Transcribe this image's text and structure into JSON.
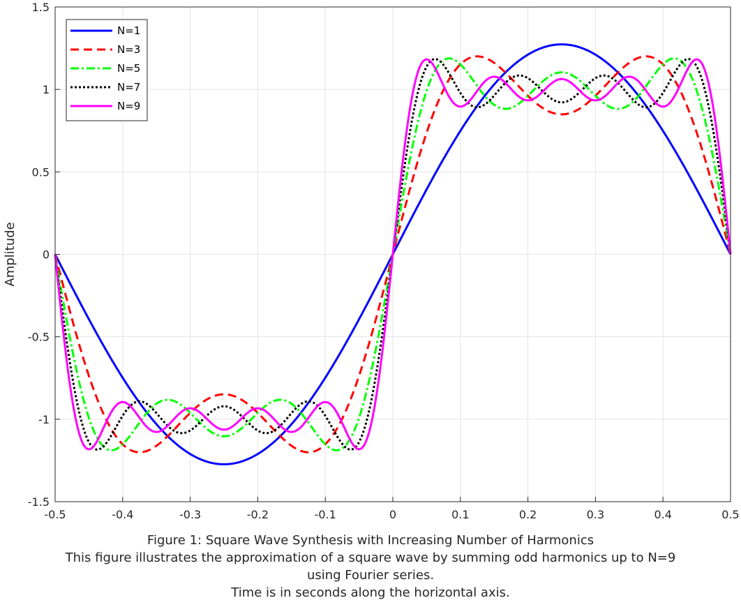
{
  "chart_data": {
    "type": "line",
    "title": "",
    "xlabel": "",
    "ylabel": "Amplitude",
    "xlim": [
      -0.5,
      0.5
    ],
    "ylim": [
      -1.5,
      1.5
    ],
    "x_ticks": [
      "-0.5",
      "-0.4",
      "-0.3",
      "-0.2",
      "-0.1",
      "0",
      "0.1",
      "0.2",
      "0.3",
      "0.4",
      "0.5"
    ],
    "y_ticks": [
      "1.5",
      "1",
      "0.5",
      "0",
      "-0.5",
      "-1",
      "-1.5"
    ],
    "grid": true,
    "legend_position": "top-left",
    "function": "sum over odd k <= N of (4/pi) * sin(2*pi*k*t)/k, t in seconds",
    "series": [
      {
        "name": "N=1",
        "harmonics": 1,
        "color": "#0000ff",
        "style": "solid"
      },
      {
        "name": "N=3",
        "harmonics": 3,
        "color": "#ff0000",
        "style": "dashed"
      },
      {
        "name": "N=5",
        "harmonics": 5,
        "color": "#00ff00",
        "style": "dash-dot"
      },
      {
        "name": "N=7",
        "harmonics": 7,
        "color": "#000000",
        "style": "dotted"
      },
      {
        "name": "N=9",
        "harmonics": 9,
        "color": "#ff00ff",
        "style": "solid"
      }
    ]
  },
  "caption": {
    "line1": "Figure 1: Square Wave Synthesis with Increasing Number of Harmonics",
    "line2": "This figure illustrates the approximation of a square wave by summing odd harmonics up to N=9",
    "line3": "using Fourier series.",
    "line4": "Time is in seconds along the horizontal axis."
  }
}
